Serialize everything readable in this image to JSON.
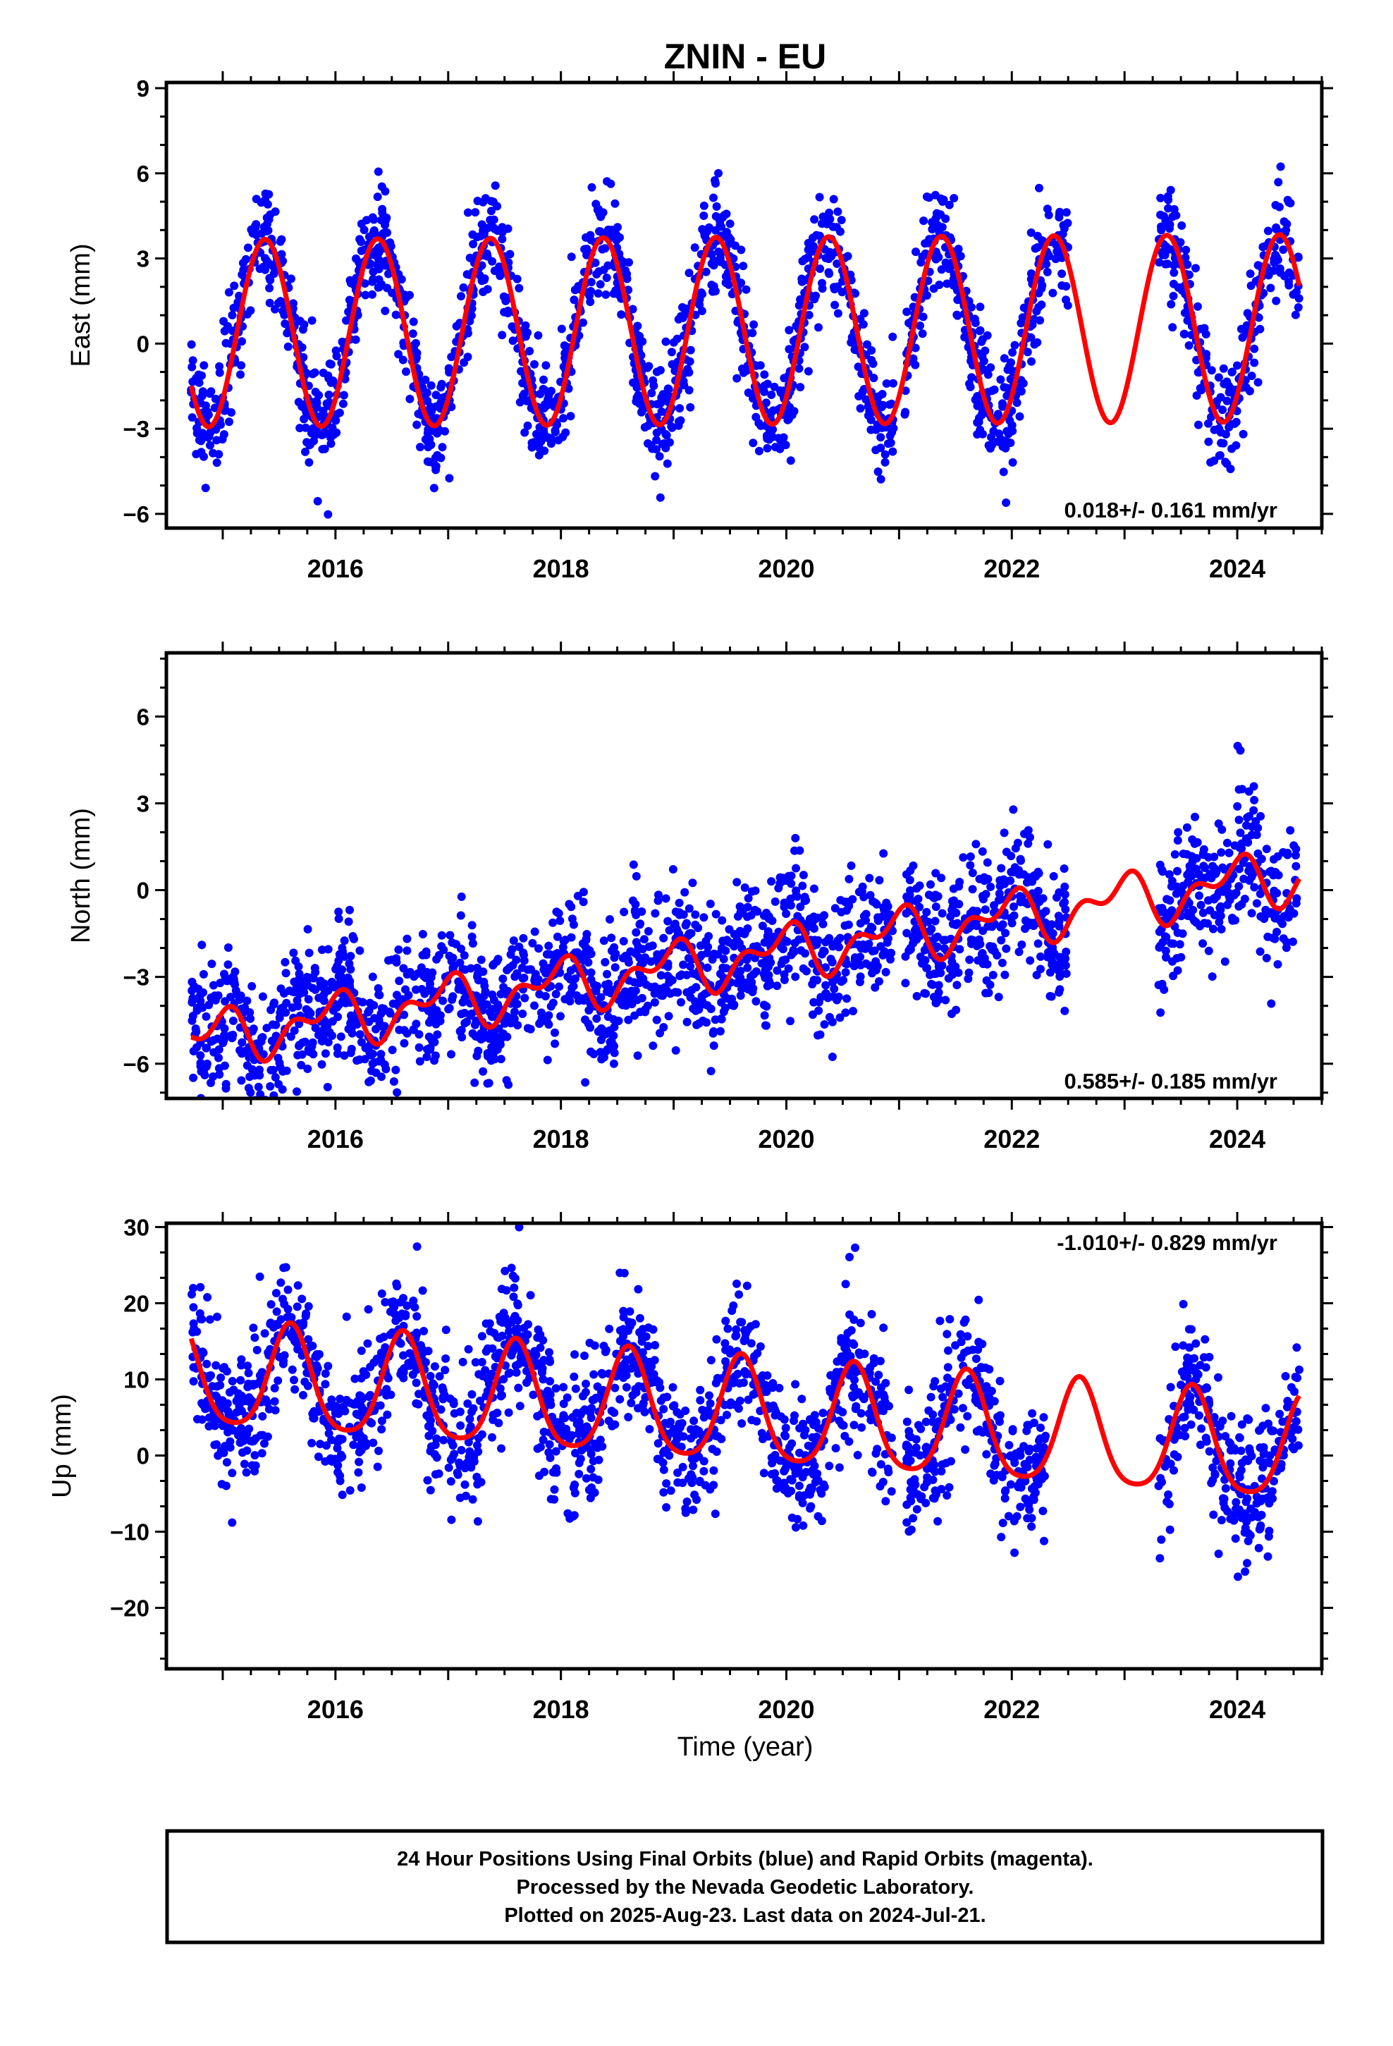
{
  "title": "ZNIN - EU",
  "colors": {
    "points": "#0000ff",
    "model": "#ff0000",
    "axes": "#000000"
  },
  "footer": {
    "line1": "24 Hour Positions Using Final Orbits (blue) and Rapid Orbits (magenta).",
    "line2": "Processed by the Nevada Geodetic Laboratory.",
    "line3": "Plotted on 2025-Aug-23. Last data on 2024-Jul-21."
  },
  "chart_data": [
    {
      "type": "scatter",
      "ylabel": "East (mm)",
      "xlabel": "",
      "xlim": [
        2014.5,
        2024.75
      ],
      "ylim": [
        -6.5,
        9.2
      ],
      "yticks": [
        -6,
        -3,
        0,
        3,
        6,
        9
      ],
      "xticks": [
        2016,
        2018,
        2020,
        2022,
        2024
      ],
      "rate_text": "0.018+/- 0.161 mm/yr",
      "rate_placement": "bottom-right",
      "data_range": [
        2014.72,
        2024.55
      ],
      "gaps": [
        [
          2020.95,
          2021.05
        ],
        [
          2022.5,
          2023.3
        ]
      ],
      "model": {
        "offset": 0.45,
        "trend": 0.018,
        "amp1": 3.3,
        "phase1": 2015.375,
        "amp2": 0.0,
        "phase2": 0.0
      },
      "noise_sd": 1.0,
      "series": [
        {
          "name": "Final Orbits (blue)",
          "style": "points"
        },
        {
          "name": "Model",
          "style": "line"
        }
      ]
    },
    {
      "type": "scatter",
      "ylabel": "North (mm)",
      "xlabel": "",
      "xlim": [
        2014.5,
        2024.75
      ],
      "ylim": [
        -7.2,
        8.2
      ],
      "yticks": [
        -6,
        -3,
        0,
        3,
        6
      ],
      "xticks": [
        2016,
        2018,
        2020,
        2022,
        2024
      ],
      "rate_text": "0.585+/- 0.185 mm/yr",
      "rate_placement": "bottom-right",
      "data_range": [
        2014.72,
        2024.55
      ],
      "gaps": [
        [
          2020.95,
          2021.05
        ],
        [
          2022.5,
          2023.3
        ]
      ],
      "model": {
        "offset": -2.4,
        "trend": 0.585,
        "amp1": 0.7,
        "phase1": 2015.95,
        "amp2": 0.5,
        "phase2": 2015.1
      },
      "noise_sd": 1.2,
      "series": [
        {
          "name": "Final Orbits (blue)",
          "style": "points"
        },
        {
          "name": "Model",
          "style": "line"
        }
      ]
    },
    {
      "type": "scatter",
      "ylabel": "Up (mm)",
      "xlabel": "Time (year)",
      "xlim": [
        2014.5,
        2024.75
      ],
      "ylim": [
        -28,
        30.5
      ],
      "yticks": [
        -20,
        -10,
        0,
        10,
        20,
        30
      ],
      "xticks": [
        2016,
        2018,
        2020,
        2022,
        2024
      ],
      "rate_text": "-1.010+/- 0.829 mm/yr",
      "rate_placement": "top-right",
      "data_range": [
        2014.72,
        2024.55
      ],
      "gaps": [
        [
          2020.95,
          2021.05
        ],
        [
          2022.3,
          2023.3
        ]
      ],
      "model": {
        "offset": 5.5,
        "trend": -1.01,
        "amp1": 6.8,
        "phase1": 2015.6,
        "amp2": 1.2,
        "phase2": 2015.1
      },
      "noise_sd": 4.5,
      "series": [
        {
          "name": "Final Orbits (blue)",
          "style": "points"
        },
        {
          "name": "Model",
          "style": "line"
        }
      ]
    }
  ]
}
